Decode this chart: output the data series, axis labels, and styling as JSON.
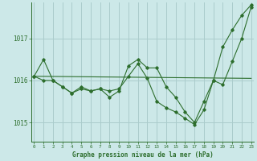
{
  "background_color": "#cce8e8",
  "grid_color": "#aacccc",
  "line_color": "#2d6e2d",
  "title": "Graphe pression niveau de la mer (hPa)",
  "ylim": [
    1014.55,
    1017.85
  ],
  "xlim": [
    -0.3,
    23.3
  ],
  "yticks": [
    1015,
    1016,
    1017
  ],
  "xticks": [
    0,
    1,
    2,
    3,
    4,
    5,
    6,
    7,
    8,
    9,
    10,
    11,
    12,
    13,
    14,
    15,
    16,
    17,
    18,
    19,
    20,
    21,
    22,
    23
  ],
  "series1": [
    1016.1,
    1016.5,
    1016.0,
    1015.85,
    1015.7,
    1015.8,
    1015.75,
    1015.8,
    1015.75,
    1015.8,
    1016.1,
    1016.4,
    1016.05,
    1015.5,
    1015.35,
    1015.25,
    1015.1,
    1014.95,
    1015.3,
    1016.0,
    1016.8,
    1017.2,
    1017.55,
    1017.8
  ],
  "series2": [
    1016.1,
    1016.0,
    1016.0,
    1015.85,
    1015.7,
    1015.85,
    1015.75,
    1015.8,
    1015.6,
    1015.75,
    1016.35,
    1016.5,
    1016.3,
    1016.3,
    1015.85,
    1015.6,
    1015.25,
    1015.0,
    1015.5,
    1016.0,
    1015.9,
    1016.45,
    1017.0,
    1017.75
  ],
  "series3_x": [
    0,
    23
  ],
  "series3_y": [
    1016.1,
    1016.05
  ]
}
